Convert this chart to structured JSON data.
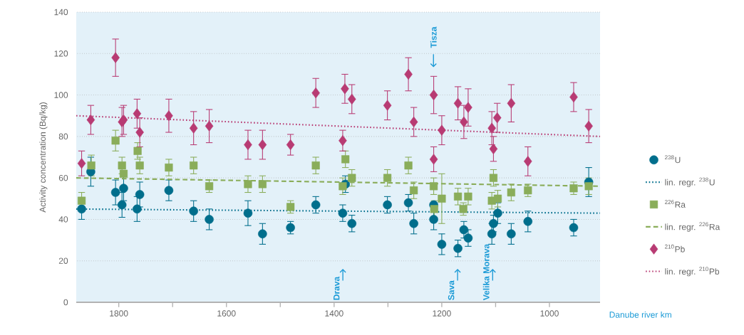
{
  "chart_data": {
    "type": "scatter",
    "xlabel": "Danube river km",
    "ylabel": "Activity concentration (Bq/kg)",
    "xlim": [
      1879,
      906
    ],
    "ylim": [
      0,
      140
    ],
    "xticks": [
      1800,
      {
        "value": 1700,
        "label": null
      },
      1600,
      {
        "value": 1500,
        "label": null
      },
      1400,
      {
        "value": 1300,
        "label": null
      },
      1200,
      {
        "value": 1100,
        "label": null
      },
      1000
    ],
    "yticks": [
      0,
      20,
      40,
      60,
      80,
      100,
      120,
      140
    ],
    "grid": "y",
    "legend": "right",
    "series": [
      {
        "name": "$^{238}$U",
        "marker": "circle",
        "color": "#006e8c",
        "x": [
          1869,
          1852,
          1806,
          1794,
          1791,
          1766,
          1761,
          1707,
          1661,
          1632,
          1560,
          1533,
          1481,
          1434,
          1384,
          1379,
          1367,
          1301,
          1262,
          1252,
          1215,
          1215,
          1200,
          1170,
          1159,
          1151,
          1107,
          1104,
          1096,
          1071,
          1040,
          955,
          927
        ],
        "values": [
          45,
          63,
          53,
          47,
          55,
          45,
          52,
          54,
          44,
          40,
          43,
          33,
          36,
          47,
          43,
          57,
          38,
          47,
          48,
          38,
          47,
          40,
          28,
          26,
          35,
          31,
          33,
          38,
          43,
          33,
          39,
          36,
          58
        ],
        "errors": [
          5,
          7,
          6,
          6,
          6,
          6,
          6,
          5,
          5,
          5,
          6,
          5,
          3,
          4,
          4,
          4,
          4,
          4,
          4,
          5,
          null,
          5,
          5,
          4,
          4,
          4,
          5,
          4,
          5,
          5,
          5,
          4,
          7
        ]
      },
      {
        "name": "lin. regr. $^{238}$U",
        "type": "line",
        "line_style": "dotted",
        "color": "#006e8c",
        "x": [
          1879,
          906
        ],
        "values": [
          45,
          43
        ]
      },
      {
        "name": "$^{226}$Ra",
        "marker": "square",
        "color": "#8aad5a",
        "x": [
          1869,
          1851,
          1806,
          1794,
          1791,
          1765,
          1761,
          1707,
          1661,
          1632,
          1560,
          1533,
          1481,
          1434,
          1379,
          1384,
          1367,
          1301,
          1262,
          1252,
          1215,
          1214,
          1200,
          1170,
          1151,
          1160,
          1107,
          1096,
          1104,
          1071,
          1040,
          955,
          927
        ],
        "values": [
          49,
          66,
          78,
          66,
          62,
          73,
          66,
          65,
          66,
          56,
          57,
          57,
          46,
          66,
          69,
          56,
          60,
          60,
          66,
          54,
          56,
          45,
          50,
          51,
          51,
          45,
          49,
          50,
          60,
          53,
          54,
          55,
          56
        ],
        "errors": [
          4,
          5,
          5,
          4,
          null,
          4,
          4,
          4,
          4,
          3,
          4,
          4,
          3,
          4,
          4,
          4,
          4,
          4,
          4,
          4,
          4,
          4,
          12,
          4,
          4,
          3,
          4,
          4,
          4,
          4,
          3,
          3,
          4
        ]
      },
      {
        "name": "lin. regr. $^{226}$Ra",
        "type": "line",
        "line_style": "dashed",
        "color": "#8aad5a",
        "x": [
          1879,
          906
        ],
        "values": [
          60,
          56
        ]
      },
      {
        "name": "$^{210}$Pb",
        "marker": "diamond",
        "color": "#b83b73",
        "x": [
          1869,
          1852,
          1806,
          1794,
          1791,
          1766,
          1761,
          1707,
          1661,
          1632,
          1560,
          1533,
          1481,
          1434,
          1380,
          1367,
          1384,
          1301,
          1262,
          1252,
          1215,
          1215,
          1200,
          1170,
          1151,
          1159,
          1107,
          1104,
          1097,
          1071,
          1040,
          955,
          927
        ],
        "values": [
          67,
          88,
          118,
          87,
          88,
          91,
          82,
          90,
          84,
          85,
          76,
          76,
          76,
          101,
          103,
          98,
          78,
          95,
          110,
          87,
          100,
          69,
          83,
          96,
          94,
          87,
          84,
          74,
          89,
          96,
          68,
          99,
          85
        ],
        "errors": [
          6,
          7,
          9,
          7,
          7,
          7,
          7,
          8,
          8,
          8,
          7,
          7,
          5,
          7,
          7,
          7,
          5,
          7,
          8,
          7,
          9,
          6,
          7,
          8,
          9,
          8,
          8,
          6,
          7,
          9,
          7,
          7,
          8
        ]
      },
      {
        "name": "lin. regr. $^{210}$Pb",
        "type": "line",
        "line_style": "dotted",
        "color": "#b83b73",
        "x": [
          1879,
          906
        ],
        "values": [
          90,
          80
        ]
      }
    ],
    "annotations": [
      "Tisza",
      "Drava",
      "Sava",
      "Velika Morava"
    ]
  }
}
